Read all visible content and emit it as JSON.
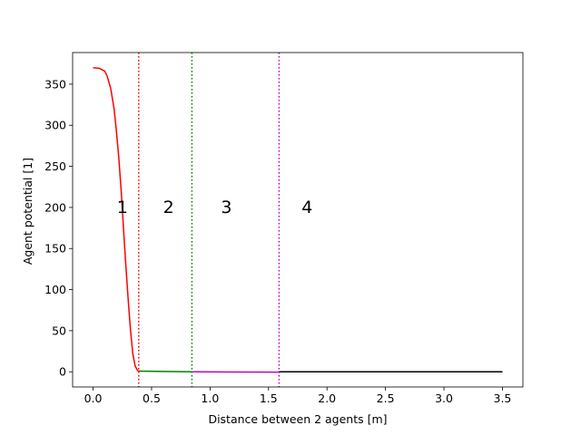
{
  "chart_data": {
    "type": "line",
    "title": "",
    "xlabel": "Distance between 2 agents [m]",
    "ylabel": "Agent potential [1]",
    "xlim": [
      -0.175,
      3.675
    ],
    "ylim": [
      -18.5,
      388.5
    ],
    "xticks": [
      0.0,
      0.5,
      1.0,
      1.5,
      2.0,
      2.5,
      3.0,
      3.5
    ],
    "xtick_labels": [
      "0.0",
      "0.5",
      "1.0",
      "1.5",
      "2.0",
      "2.5",
      "3.0",
      "3.5"
    ],
    "yticks": [
      0,
      50,
      100,
      150,
      200,
      250,
      300,
      350
    ],
    "ytick_labels": [
      "0",
      "50",
      "100",
      "150",
      "200",
      "250",
      "300",
      "350"
    ],
    "grid": false,
    "legend": "none",
    "series": [
      {
        "color": "#ff0000",
        "x": [
          0.0,
          0.05,
          0.1,
          0.12,
          0.15,
          0.18,
          0.2,
          0.22,
          0.24,
          0.26,
          0.28,
          0.3,
          0.32,
          0.34,
          0.36,
          0.38,
          0.39
        ],
        "y": [
          370,
          369.5,
          366,
          360,
          345,
          320,
          292,
          260,
          220,
          175,
          130,
          88,
          50,
          22,
          7,
          1.5,
          0.8
        ]
      },
      {
        "color": "#008000",
        "x": [
          0.39,
          0.6,
          0.85
        ],
        "y": [
          0.8,
          0.4,
          0.0
        ]
      },
      {
        "color": "#bf00bf",
        "x": [
          0.85,
          1.2,
          1.59
        ],
        "y": [
          0.0,
          -0.3,
          -0.4
        ]
      },
      {
        "color": "#000000",
        "x": [
          1.59,
          2.5,
          3.5
        ],
        "y": [
          0.0,
          0.0,
          0.0
        ]
      }
    ],
    "vlines": [
      {
        "x": 0.39,
        "color": "#ff0000",
        "style": "dotted"
      },
      {
        "x": 0.845,
        "color": "#008000",
        "style": "dotted"
      },
      {
        "x": 1.59,
        "color": "#bf00bf",
        "style": "dotted"
      }
    ],
    "annotations": [
      {
        "text": "1",
        "x": 0.25,
        "y": 201
      },
      {
        "text": "2",
        "x": 0.645,
        "y": 201
      },
      {
        "text": "3",
        "x": 1.14,
        "y": 201
      },
      {
        "text": "4",
        "x": 1.83,
        "y": 201
      }
    ]
  }
}
